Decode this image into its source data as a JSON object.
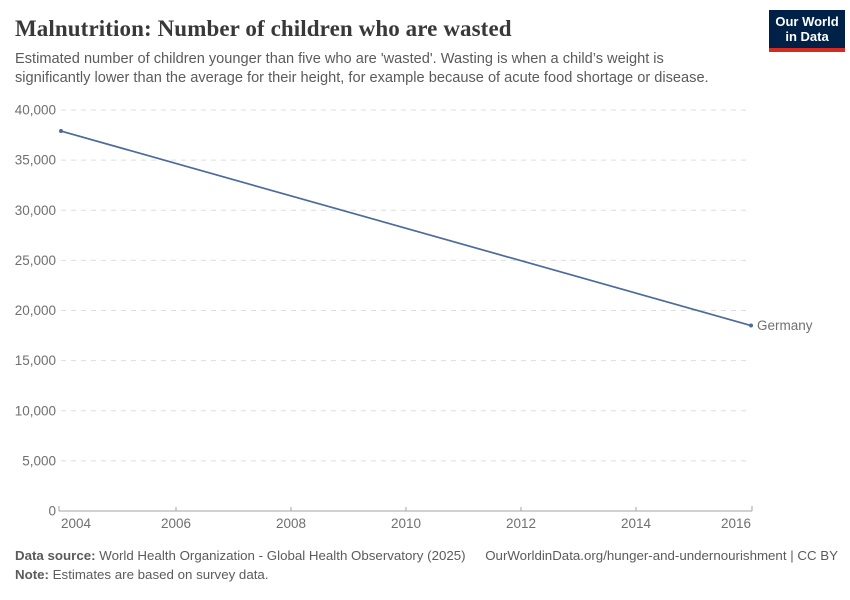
{
  "header": {
    "title": "Malnutrition: Number of children who are wasted",
    "subtitle": "Estimated number of children younger than five who are 'wasted'. Wasting is when a child’s weight is significantly lower than the average for their height, for example because of acute food shortage or disease.",
    "logo": {
      "line1": "Our World",
      "line2": "in Data",
      "bg_color": "#002147",
      "accent_color": "#d42b21"
    }
  },
  "chart_data": {
    "type": "line",
    "title": "Malnutrition: Number of children who are wasted",
    "xlabel": "",
    "ylabel": "",
    "xlim": [
      2004,
      2016
    ],
    "ylim": [
      0,
      40000
    ],
    "x_ticks": [
      2004,
      2006,
      2008,
      2010,
      2012,
      2014,
      2016
    ],
    "y_ticks": [
      0,
      5000,
      10000,
      15000,
      20000,
      25000,
      30000,
      35000,
      40000
    ],
    "y_tick_labels": [
      "0",
      "5,000",
      "10,000",
      "15,000",
      "20,000",
      "25,000",
      "30,000",
      "35,000",
      "40,000"
    ],
    "grid": "horizontal-dashed",
    "legend_position": "end-of-line",
    "series": [
      {
        "name": "Germany",
        "color": "#4c6a9c",
        "points": [
          {
            "x": 2004,
            "y": 37900
          },
          {
            "x": 2016,
            "y": 18500
          }
        ]
      }
    ]
  },
  "footer": {
    "datasource_label": "Data source:",
    "datasource_text": " World Health Organization - Global Health Observatory (2025)",
    "note_label": "Note:",
    "note_text": " Estimates are based on survey data.",
    "link": "OurWorldinData.org/hunger-and-undernourishment | CC BY"
  },
  "colors": {
    "series_line": "#4c6a9c",
    "gridline": "#dddddd",
    "axis": "#a3a3a3",
    "tick_text": "#707070",
    "title_text": "#383838",
    "body_text": "#5b5b5b",
    "logo_bg": "#002147",
    "logo_accent": "#d42b21"
  }
}
